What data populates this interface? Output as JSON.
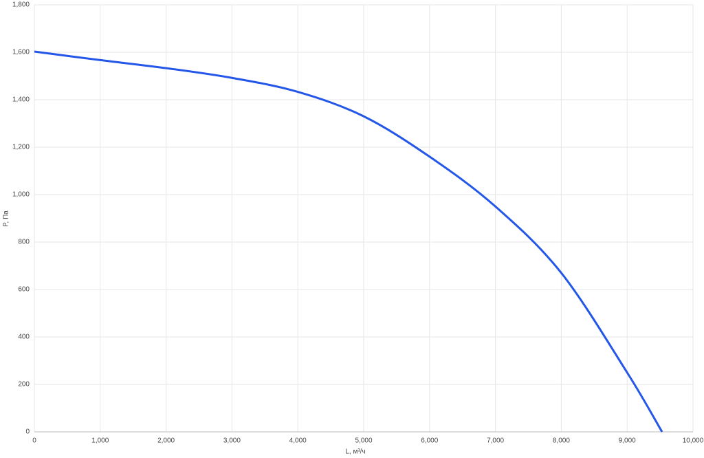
{
  "chart_data": {
    "type": "line",
    "x_label": "L, м³/ч",
    "y_label": "P, Па",
    "x": [
      0,
      1000,
      2000,
      3000,
      4000,
      5000,
      6000,
      7000,
      8000,
      9000,
      9530
    ],
    "series": [
      {
        "color": "#2457e8",
        "values": [
          1603,
          1567,
          1533,
          1492,
          1433,
          1330,
          1160,
          950,
          670,
          250,
          0
        ]
      }
    ],
    "xlim": [
      0,
      10000
    ],
    "xticks": [
      0,
      {
        "value": 1000,
        "label": "1,000"
      },
      {
        "value": 2000,
        "label": "2,000"
      },
      {
        "value": 3000,
        "label": "3,000"
      },
      {
        "value": 4000,
        "label": "4,000"
      },
      {
        "value": 5000,
        "label": "5,000"
      },
      {
        "value": 6000,
        "label": "6,000"
      },
      {
        "value": 7000,
        "label": "7,000"
      },
      {
        "value": 8000,
        "label": "8,000"
      },
      {
        "value": 9000,
        "label": "9,000"
      },
      {
        "value": 10000,
        "label": "10,000"
      }
    ],
    "ylim": [
      0,
      1800
    ],
    "yticks": [
      0,
      200,
      400,
      600,
      800,
      {
        "value": 1000,
        "label": "1,000"
      },
      {
        "value": 1200,
        "label": "1,200"
      },
      {
        "value": 1400,
        "label": "1,400"
      },
      {
        "value": 1600,
        "label": "1,600"
      },
      {
        "value": 1800,
        "label": "1,800"
      }
    ],
    "grid": true
  }
}
